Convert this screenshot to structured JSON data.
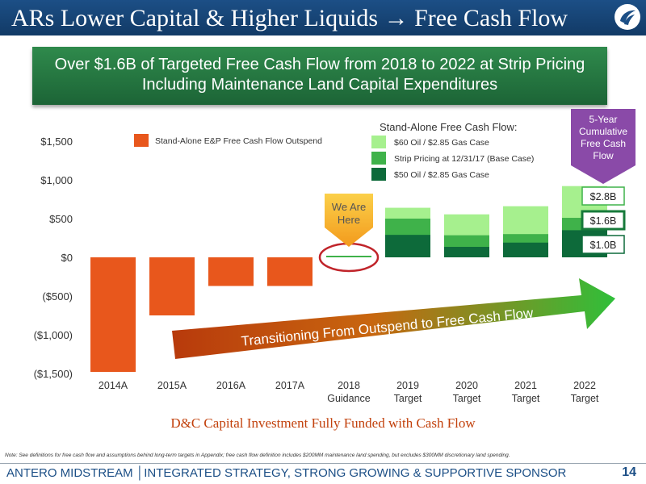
{
  "title": "ARs Lower Capital & Higher Liquids → Free Cash Flow",
  "banner": {
    "line1": "Over $1.6B of Targeted Free Cash Flow from 2018 to 2022 at Strip Pricing",
    "line2": "Including Maintenance Land Capital Expenditures"
  },
  "chart_data": {
    "type": "bar",
    "categories": [
      "2014A",
      "2015A",
      "2016A",
      "2017A",
      "2018 Guidance",
      "2019 Target",
      "2020 Target",
      "2021 Target",
      "2022 Target"
    ],
    "category_lines": [
      [
        "2014A"
      ],
      [
        "2015A"
      ],
      [
        "2016A"
      ],
      [
        "2017A"
      ],
      [
        "2018",
        "Guidance"
      ],
      [
        "2019",
        "Target"
      ],
      [
        "2020",
        "Target"
      ],
      [
        "2021",
        "Target"
      ],
      [
        "2022",
        "Target"
      ]
    ],
    "yticks": [
      "$1,500",
      "$1,000",
      "$500",
      "$0",
      "($500)",
      "($1,000)",
      "($1,500)"
    ],
    "ylim": [
      -1500,
      1500
    ],
    "outspend": {
      "name": "Stand-Alone E&P Free Cash Flow Outspend",
      "color": "#e8571c",
      "values": [
        -1480,
        -750,
        -370,
        -370,
        null,
        null,
        null,
        null,
        null
      ]
    },
    "fcf_title": "Stand-Alone Free Cash Flow:",
    "fcf_series": [
      {
        "name": "$60 Oil / $2.85 Gas Case",
        "color": "#a6f08e",
        "values": [
          null,
          null,
          null,
          null,
          20,
          640,
          555,
          660,
          920
        ]
      },
      {
        "name": "Strip Pricing at 12/31/17 (Base Case)",
        "color": "#3fb24a",
        "values": [
          null,
          null,
          null,
          null,
          10,
          500,
          285,
          300,
          510
        ]
      },
      {
        "name": "$50 Oil / $2.85 Gas Case",
        "color": "#0d6a3a",
        "values": [
          null,
          null,
          null,
          null,
          5,
          290,
          135,
          190,
          350
        ]
      }
    ],
    "callout": "We Are Here",
    "cumulative_title": "5-Year Cumulative Free Cash Flow",
    "cumulative_values": [
      "$2.8B",
      "$1.6B",
      "$1.0B"
    ],
    "arrow_text": "Transitioning From Outspend to Free Cash Flow",
    "subtitle": "D&C Capital Investment Fully Funded with Cash Flow"
  },
  "footnote": "Note: See definitions for free cash flow and assumptions behind long-term targets in Appendix; free cash flow definition includes $200MM maintenance land spending, but excludes $300MM discretionary land spending.",
  "footer": "ANTERO MIDSTREAM │INTEGRATED STRATEGY, STRONG GROWING & SUPPORTIVE SPONSOR",
  "page_number": "14",
  "colors": {
    "title_bar": "#1c4f86",
    "banner": "#2f8a4c",
    "purple": "#8a4aa8",
    "arrow_start": "#c2410c",
    "arrow_end": "#22c55e"
  }
}
